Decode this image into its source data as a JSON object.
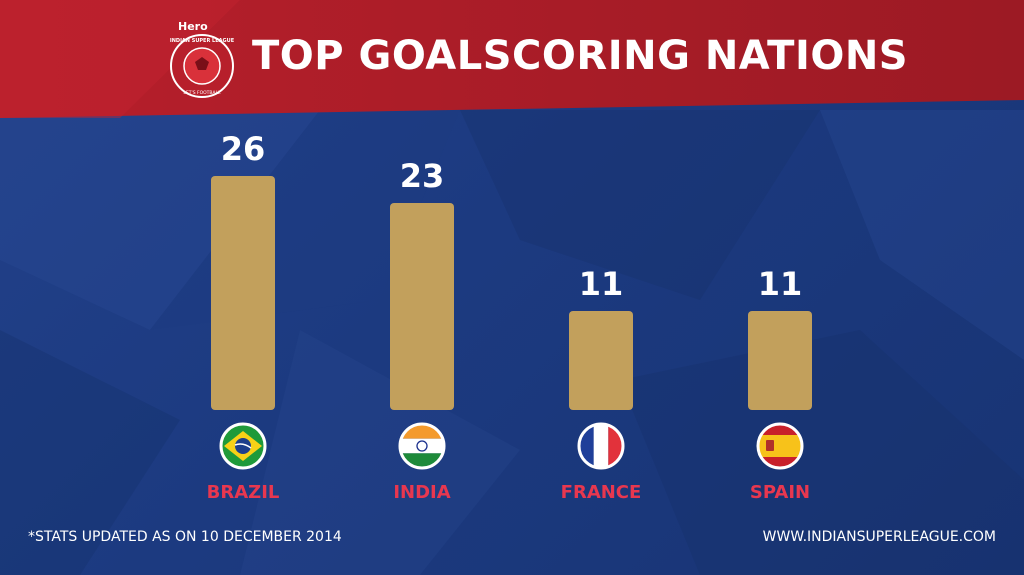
{
  "header": {
    "title": "TOP GOALSCORING NATIONS",
    "logo": {
      "sponsor": "Hero",
      "league": "INDIAN SUPER LEAGUE",
      "tagline": "LET'S FOOTBALL"
    }
  },
  "chart_data": {
    "type": "bar",
    "title": "TOP GOALSCORING NATIONS",
    "categories": [
      "BRAZIL",
      "INDIA",
      "FRANCE",
      "SPAIN"
    ],
    "values": [
      26,
      23,
      11,
      11
    ],
    "xlabel": "",
    "ylabel": "",
    "grid": false,
    "bar_color": "#c2a05c",
    "value_label_color": "#ffffff",
    "category_label_color": "#e8374f",
    "flag_icons": [
      "brazil-flag-icon",
      "india-flag-icon",
      "france-flag-icon",
      "spain-flag-icon"
    ]
  },
  "footer": {
    "note": "*STATS UPDATED AS ON 10 DECEMBER 2014",
    "website": "WWW.INDIANSUPERLEAGUE.COM"
  },
  "colors": {
    "header_red": "#b8202a",
    "background_blue": "#1e3a80"
  }
}
